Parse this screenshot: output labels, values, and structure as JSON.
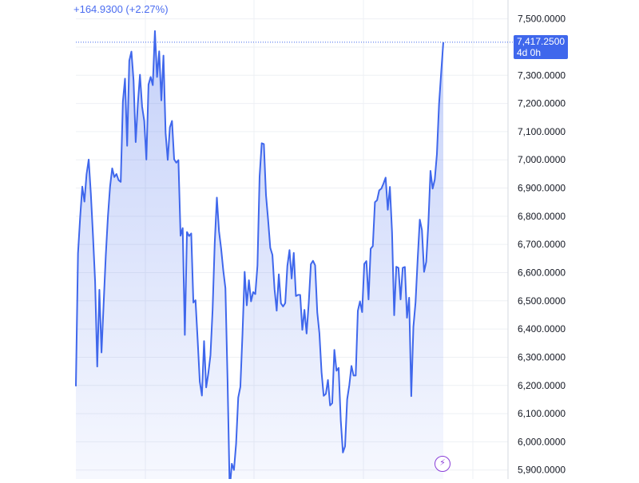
{
  "header": {
    "change_text": "+164.9300 (+2.27%)"
  },
  "price_badge": {
    "price": "7,417.2500",
    "countdown": "4d 0h"
  },
  "colors": {
    "line": "#3f67ec",
    "badge": "#3f67ec",
    "grid": "#eef0f4",
    "axis_text": "#131722",
    "lightning": "#8a3fd8"
  },
  "icons": {
    "lightning": "lightning-bolt"
  },
  "chart_data": {
    "type": "area",
    "y_tick_labels": [
      "7,500.0000",
      "7,400.0000",
      "7,300.0000",
      "7,200.0000",
      "7,100.0000",
      "7,000.0000",
      "6,900.0000",
      "6,800.0000",
      "6,700.0000",
      "6,600.0000",
      "6,500.0000",
      "6,400.0000",
      "6,300.0000",
      "6,200.0000",
      "6,100.0000",
      "6,000.0000",
      "5,900.0000"
    ],
    "y_ticks": [
      7500,
      7400,
      7300,
      7200,
      7100,
      7000,
      6900,
      6800,
      6700,
      6600,
      6500,
      6400,
      6300,
      6200,
      6100,
      6000,
      5900
    ],
    "ylim": [
      5868,
      7567
    ],
    "current_value": 7417.25,
    "grid": true,
    "values": [
      6197,
      6669,
      6796,
      6905,
      6852,
      6949,
      7001,
      6881,
      6732,
      6569,
      6267,
      6539,
      6317,
      6491,
      6661,
      6799,
      6905,
      6970,
      6939,
      6950,
      6928,
      6922,
      7206,
      7288,
      7050,
      7352,
      7384,
      7282,
      7063,
      7198,
      7302,
      7189,
      7138,
      7001,
      7267,
      7294,
      7265,
      7457,
      7294,
      7385,
      7211,
      7370,
      7095,
      7000,
      7115,
      7138,
      7002,
      6990,
      6999,
      6731,
      6758,
      6379,
      6744,
      6730,
      6739,
      6494,
      6502,
      6362,
      6213,
      6164,
      6357,
      6193,
      6243,
      6307,
      6468,
      6705,
      6866,
      6747,
      6685,
      6608,
      6545,
      6221,
      5830,
      5922,
      5900,
      5993,
      6157,
      6195,
      6383,
      6603,
      6484,
      6573,
      6498,
      6531,
      6524,
      6625,
      6941,
      7059,
      7056,
      6875,
      6786,
      6688,
      6663,
      6541,
      6465,
      6594,
      6491,
      6480,
      6492,
      6624,
      6680,
      6579,
      6670,
      6517,
      6521,
      6521,
      6397,
      6468,
      6384,
      6492,
      6630,
      6642,
      6626,
      6459,
      6385,
      6247,
      6163,
      6170,
      6219,
      6129,
      6137,
      6326,
      6252,
      6262,
      6076,
      5962,
      5984,
      6151,
      6201,
      6269,
      6235,
      6235,
      6465,
      6498,
      6460,
      6631,
      6641,
      6505,
      6685,
      6694,
      6850,
      6857,
      6892,
      6898,
      6916,
      6937,
      6823,
      6904,
      6744,
      6449,
      6621,
      6617,
      6505,
      6617,
      6620,
      6440,
      6511,
      6162,
      6408,
      6494,
      6648,
      6788,
      6751,
      6603,
      6638,
      6774,
      6961,
      6898,
      6930,
      7020,
      7197,
      7310,
      7417
    ]
  }
}
